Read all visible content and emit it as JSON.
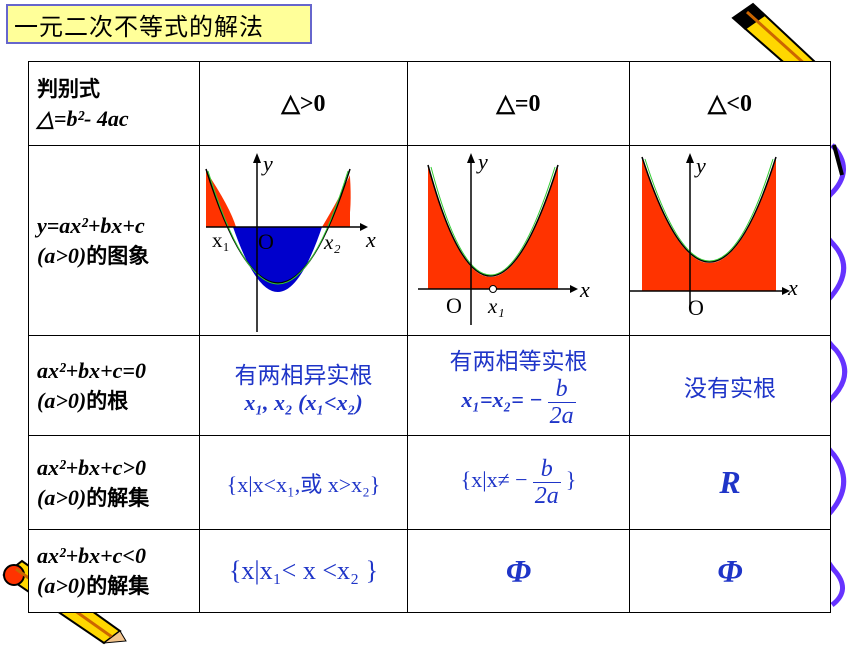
{
  "title": "一元二次不等式的解法",
  "header": {
    "discriminant_label_line1": "判别式",
    "discriminant_label_line2": "△=b²- 4ac",
    "col1": "△>0",
    "col2": "△=0",
    "col3": "△<0"
  },
  "rows": {
    "graph": {
      "label_line1": "y=ax²+bx+c",
      "label_line2_math": "(a>0)",
      "label_line2_cjk": "的图象",
      "axis_x": "x",
      "axis_y": "y",
      "origin": "O",
      "root1": "x₁",
      "root2": "x₂"
    },
    "roots": {
      "label_line1": "ax²+bx+c=0",
      "label_line2_math": "(a>0)",
      "label_line2_cjk": "的根",
      "col1_line1": "有两相异实根",
      "col1_line2": "x₁, x₂ (x₁<x₂)",
      "col2_line1": "有两相等实根",
      "col2_lhs": "x₁=x₂= −",
      "col2_num": "b",
      "col2_den": "2a",
      "col3": "没有实根"
    },
    "greater": {
      "label_line1": "ax²+bx+c>0",
      "label_line2_math": "(a>0)",
      "label_line2_cjk": "的解集",
      "col1": "{x|x<x₁,或 x>x₂}",
      "col2_lhs": "{x|x≠ −",
      "col2_num": "b",
      "col2_den": "2a",
      "col2_rhs": "}",
      "col3": "R"
    },
    "less": {
      "label_line1": "ax²+bx+c<0",
      "label_line2_math": "(a>0)",
      "label_line2_cjk": "的解集",
      "col1": "{x|x₁< x <x₂ }",
      "col2": "Φ",
      "col3": "Φ"
    }
  },
  "colors": {
    "title_bg": "#ffff99",
    "title_border": "#6666cc",
    "fill_red": "#ff3300",
    "fill_blue": "#0000cc",
    "text_blue": "#1f35c8",
    "curve_green": "#33cc33"
  }
}
